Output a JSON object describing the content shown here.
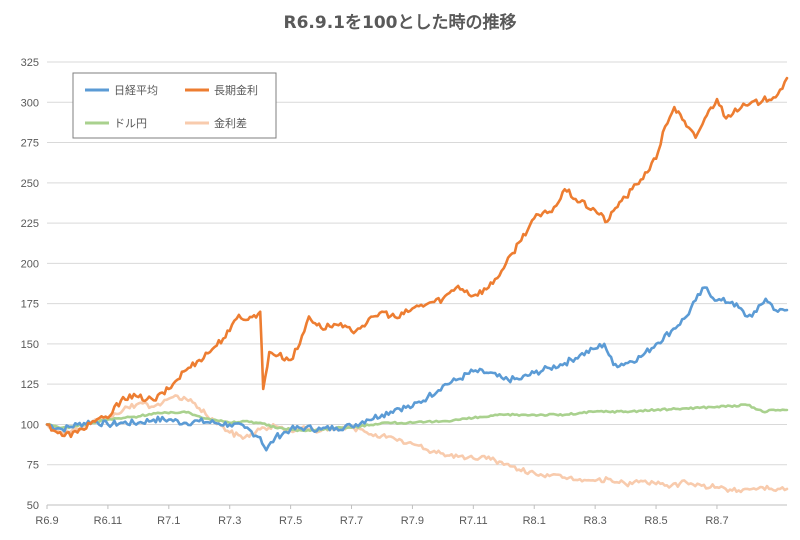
{
  "chart_data": {
    "type": "line",
    "title": "R6.9.1を100とした時の推移",
    "xlabel": "",
    "ylabel": "",
    "ylim": [
      50,
      325
    ],
    "yticks": [
      50,
      75,
      100,
      125,
      150,
      175,
      200,
      225,
      250,
      275,
      300,
      325
    ],
    "grid": "horizontal",
    "legend_position": "top-left",
    "x_tick_labels": [
      "R6.9",
      "R6.11",
      "R7.1",
      "R7.3",
      "R7.5",
      "R7.7",
      "R7.9",
      "R7.11",
      "R8.1",
      "R8.3",
      "R8.5",
      "R8.7"
    ],
    "x_months": [
      0,
      2,
      4,
      6,
      8,
      10,
      12,
      14,
      16,
      18,
      20,
      22
    ],
    "x_range_months": [
      0,
      24.3
    ],
    "series": [
      {
        "name": "日経平均",
        "color": "#5B9BD5",
        "x": [
          0,
          0.5,
          1,
          1.5,
          2,
          2.5,
          3,
          3.5,
          4,
          4.5,
          5,
          5.5,
          6,
          6.5,
          7,
          7.2,
          7.5,
          8,
          8.5,
          9,
          9.5,
          10,
          10.5,
          11,
          11.5,
          12,
          12.5,
          13,
          13.5,
          14,
          14.5,
          15,
          15.5,
          16,
          16.5,
          17,
          17.5,
          18,
          18.3,
          18.6,
          19,
          19.5,
          20,
          20.5,
          21,
          21.3,
          21.6,
          22,
          22.5,
          23,
          23.3,
          23.6,
          24,
          24.3
        ],
        "values": [
          100,
          97,
          100,
          102,
          100,
          101,
          101,
          103,
          103,
          101,
          102,
          101,
          100,
          98,
          92,
          84,
          92,
          97,
          98,
          97,
          98,
          99,
          103,
          106,
          110,
          111,
          117,
          124,
          128,
          133,
          132,
          128,
          128,
          132,
          135,
          138,
          143,
          147,
          150,
          137,
          138,
          142,
          150,
          158,
          167,
          177,
          185,
          177,
          176,
          167,
          170,
          178,
          170,
          171
        ]
      },
      {
        "name": "長期金利",
        "color": "#ED7D31",
        "x": [
          0,
          0.5,
          1,
          1.5,
          2,
          2.5,
          3,
          3.5,
          4,
          4.5,
          5,
          5.5,
          6,
          6.3,
          6.6,
          7,
          7.1,
          7.3,
          7.6,
          8,
          8.3,
          8.6,
          9,
          9.5,
          10,
          10.5,
          11,
          11.5,
          12,
          12.5,
          13,
          13.5,
          14,
          14.5,
          15,
          15.5,
          16,
          16.5,
          16.8,
          17,
          17.5,
          18,
          18.4,
          18.8,
          19,
          19.5,
          20,
          20.3,
          20.6,
          21,
          21.3,
          21.6,
          22,
          22.3,
          22.6,
          23,
          23.5,
          24,
          24.3
        ],
        "values": [
          100,
          93,
          95,
          102,
          104,
          117,
          117,
          115,
          122,
          133,
          140,
          148,
          158,
          168,
          165,
          170,
          122,
          145,
          143,
          140,
          150,
          167,
          160,
          162,
          158,
          163,
          170,
          166,
          172,
          175,
          178,
          186,
          180,
          185,
          197,
          213,
          228,
          232,
          238,
          246,
          238,
          233,
          226,
          238,
          241,
          252,
          265,
          285,
          297,
          285,
          278,
          290,
          302,
          290,
          296,
          298,
          301,
          305,
          315
        ]
      },
      {
        "name": "ドル円",
        "color": "#A9D18E",
        "x": [
          0,
          0.5,
          1,
          1.5,
          2,
          2.5,
          3,
          3.5,
          4,
          4.5,
          5,
          5.5,
          6,
          6.5,
          7,
          7.5,
          8,
          8.5,
          9,
          9.5,
          10,
          11,
          12,
          13,
          14,
          15,
          16,
          17,
          18,
          19,
          20,
          21,
          22,
          23,
          23.5,
          24,
          24.3
        ],
        "values": [
          100,
          98,
          99,
          101,
          103,
          104,
          105,
          107,
          107,
          108,
          105,
          103,
          101,
          102,
          101,
          98,
          97,
          96,
          97,
          98,
          98,
          101,
          101,
          102,
          104,
          106,
          106,
          106,
          108,
          108,
          109,
          110,
          111,
          112,
          108,
          109,
          109
        ]
      },
      {
        "name": "金利差",
        "color": "#F8CBAD",
        "x": [
          0,
          0.5,
          1,
          1.5,
          2,
          2.5,
          3,
          3.5,
          4,
          4.5,
          5,
          5.5,
          6,
          6.5,
          7,
          7.5,
          8,
          8.5,
          9,
          9.5,
          10,
          10.5,
          11,
          11.5,
          12,
          12.5,
          13,
          13.5,
          14,
          14.5,
          15,
          15.5,
          16,
          16.5,
          17,
          17.5,
          18,
          18.5,
          19,
          19.5,
          20,
          20.5,
          21,
          21.5,
          22,
          22.5,
          23,
          23.5,
          24,
          24.3
        ],
        "values": [
          100,
          95,
          97,
          101,
          104,
          109,
          113,
          111,
          116,
          117,
          110,
          102,
          95,
          92,
          97,
          99,
          96,
          98,
          96,
          97,
          98,
          95,
          93,
          90,
          88,
          84,
          82,
          80,
          79,
          80,
          75,
          72,
          70,
          68,
          67,
          66,
          65,
          66,
          63,
          65,
          63,
          62,
          64,
          62,
          61,
          59,
          60,
          61,
          60,
          60
        ]
      }
    ]
  }
}
